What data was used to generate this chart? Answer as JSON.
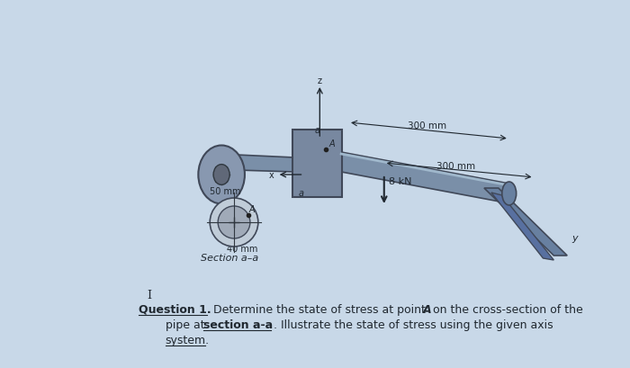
{
  "bg_color": "#c8d8e8",
  "fig_width": 7.0,
  "fig_height": 4.1,
  "title_text": "Question 1.",
  "body_text": " Determine the state of stress at point ​A​ on the cross-section of the\n          pipe at ​section a-a​. Illustrate the state of stress using the given axis\n          system.",
  "dim_300mm_1": "300 mm",
  "dim_300mm_2": "300 mm",
  "dim_50mm": "50 mm",
  "dim_40mm": "40 mm",
  "dim_8kN": "8 kN",
  "section_label": "Section a–a",
  "pipe_color": "#7090b0",
  "dark_color": "#404858",
  "flange_color": "#8898a8",
  "text_color": "#202830"
}
